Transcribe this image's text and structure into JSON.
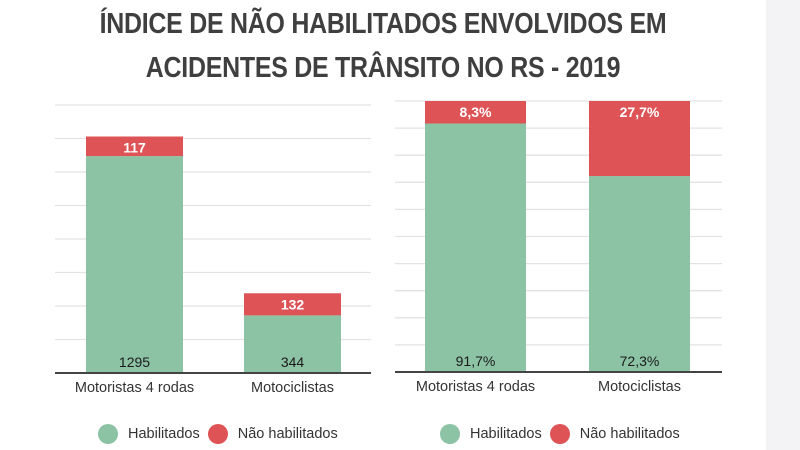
{
  "title": {
    "line1": "ÍNDICE DE NÃO HABILITADOS ENVOLVIDOS EM",
    "line2": "ACIDENTES DE TRÂNSITO NO RS - 2019"
  },
  "colors": {
    "habilitados": "#8cc3a5",
    "nao_habilitados": "#de5456",
    "grid": "#e3e3e3",
    "axis": "#444444",
    "title": "#3f3f3f"
  },
  "legend": [
    {
      "label": "Habilitados",
      "color": "#8cc3a5"
    },
    {
      "label": "Não habilitados",
      "color": "#de5456"
    }
  ],
  "chart_data": [
    {
      "type": "bar",
      "stacked": true,
      "title": "",
      "xlabel": "",
      "ylabel": "",
      "categories": [
        "Motoristas 4 rodas",
        "Motociclistas"
      ],
      "series": [
        {
          "name": "Habilitados",
          "values": [
            1295,
            344
          ],
          "labels": [
            "1295",
            "344"
          ]
        },
        {
          "name": "Não habilitados",
          "values": [
            117,
            132
          ],
          "labels": [
            "117",
            "132"
          ]
        }
      ],
      "ylim": [
        0,
        1600
      ],
      "ytick_step": 200,
      "grid": true,
      "legend": "bottom"
    },
    {
      "type": "bar",
      "stacked": true,
      "title": "",
      "xlabel": "",
      "ylabel": "",
      "categories": [
        "Motoristas 4 rodas",
        "Motociclistas"
      ],
      "series": [
        {
          "name": "Habilitados",
          "values": [
            91.7,
            72.3
          ],
          "labels": [
            "91,7%",
            "72,3%"
          ]
        },
        {
          "name": "Não habilitados",
          "values": [
            8.3,
            27.7
          ],
          "labels": [
            "8,3%",
            "27,7%"
          ]
        }
      ],
      "ylim": [
        0,
        100
      ],
      "ytick_step": 10,
      "grid": true,
      "legend": "bottom"
    }
  ]
}
